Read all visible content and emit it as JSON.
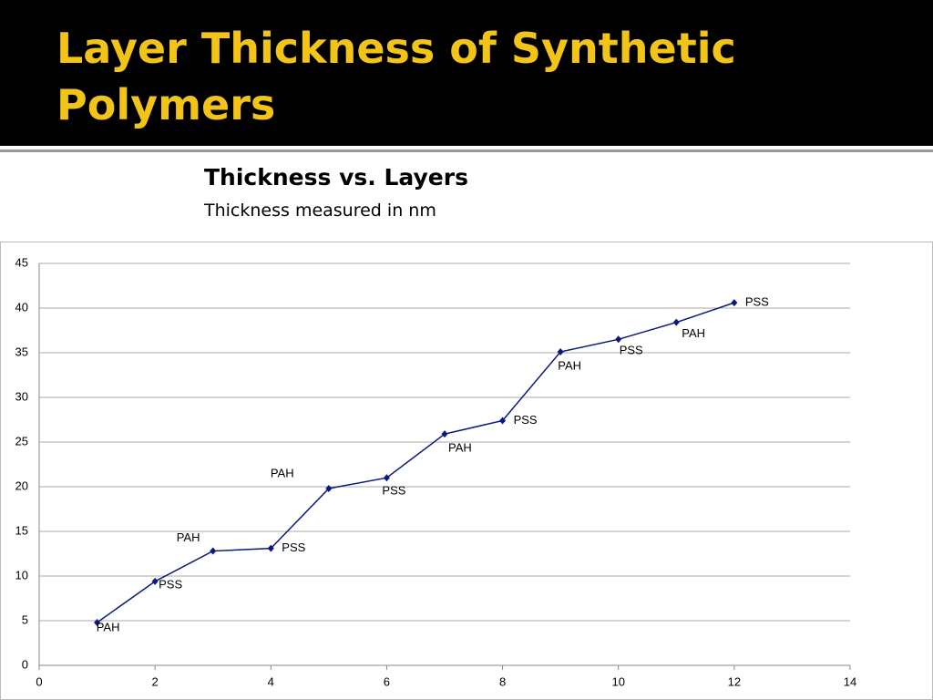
{
  "slide": {
    "title": "Layer Thickness of Synthetic Polymers"
  },
  "chart_data": {
    "type": "line",
    "title": "Thickness vs. Layers",
    "subtitle": "Thickness measured in nm",
    "x": [
      1,
      2,
      3,
      4,
      5,
      6,
      7,
      8,
      9,
      10,
      11,
      12
    ],
    "series": [
      {
        "name": "Thickness",
        "color": "#0a1a7a",
        "values": [
          4.8,
          9.4,
          12.8,
          13.1,
          19.8,
          21.0,
          25.9,
          27.4,
          35.1,
          36.5,
          38.4,
          40.6
        ],
        "labels": [
          "PAH",
          "PSS",
          "PAH",
          "PSS",
          "PAH",
          "PSS",
          "PAH",
          "PSS",
          "PAH",
          "PSS",
          "PAH",
          "PSS"
        ]
      }
    ],
    "xlim": [
      0,
      14
    ],
    "xticks": [
      0,
      2,
      4,
      6,
      8,
      10,
      12,
      14
    ],
    "ylim": [
      0,
      45
    ],
    "yticks": [
      0,
      5,
      10,
      15,
      20,
      25,
      30,
      35,
      40,
      45
    ],
    "grid": true
  }
}
